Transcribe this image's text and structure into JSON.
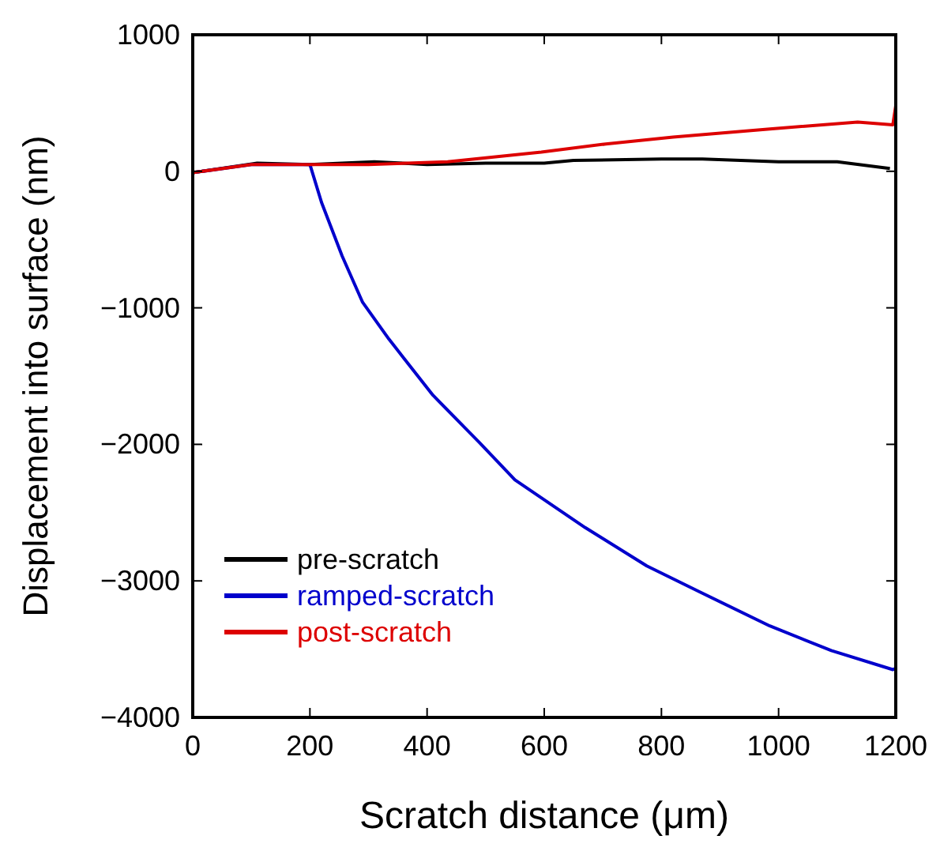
{
  "chart_data": {
    "type": "line",
    "xlabel": "Scratch distance (μm)",
    "ylabel": "Displacement into surface (nm)",
    "xlim": [
      0,
      1200
    ],
    "xticks": [
      0,
      200,
      400,
      600,
      800,
      1000,
      1200
    ],
    "ylim": [
      -4000,
      1000
    ],
    "yticks": [
      -4000,
      -3000,
      -2000,
      -1000,
      0,
      1000
    ],
    "grid": false,
    "legend": "bottom left",
    "line_style": "solid",
    "series": [
      {
        "name": "pre-scratch",
        "color": "#000000",
        "x": [
          0,
          110,
          200,
          310,
          400,
          500,
          600,
          650,
          800,
          870,
          1000,
          1100,
          1190
        ],
        "values": [
          -10,
          60,
          50,
          70,
          50,
          60,
          60,
          80,
          90,
          90,
          70,
          70,
          20
        ]
      },
      {
        "name": "ramped-scratch",
        "color": "#0000cc",
        "x": [
          0,
          100,
          200,
          220,
          255,
          290,
          335,
          410,
          490,
          550,
          670,
          775,
          865,
          985,
          1090,
          1195,
          1200
        ],
        "values": [
          -10,
          50,
          50,
          -230,
          -620,
          -960,
          -1230,
          -1640,
          -1990,
          -2260,
          -2610,
          -2890,
          -3080,
          -3330,
          -3510,
          -3650,
          -3640
        ]
      },
      {
        "name": "post-scratch",
        "color": "#dd0000",
        "x": [
          0,
          100,
          200,
          300,
          435,
          595,
          705,
          820,
          985,
          1135,
          1195,
          1200
        ],
        "values": [
          -10,
          50,
          50,
          50,
          70,
          140,
          200,
          250,
          310,
          360,
          340,
          480
        ]
      }
    ]
  }
}
